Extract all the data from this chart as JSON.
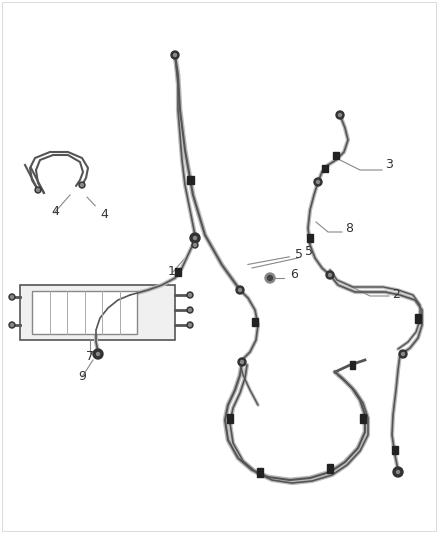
{
  "bg_color": "#ffffff",
  "line_color": "#555555",
  "dark_color": "#222222",
  "label_color": "#444444",
  "figsize": [
    4.38,
    5.33
  ],
  "dpi": 100
}
